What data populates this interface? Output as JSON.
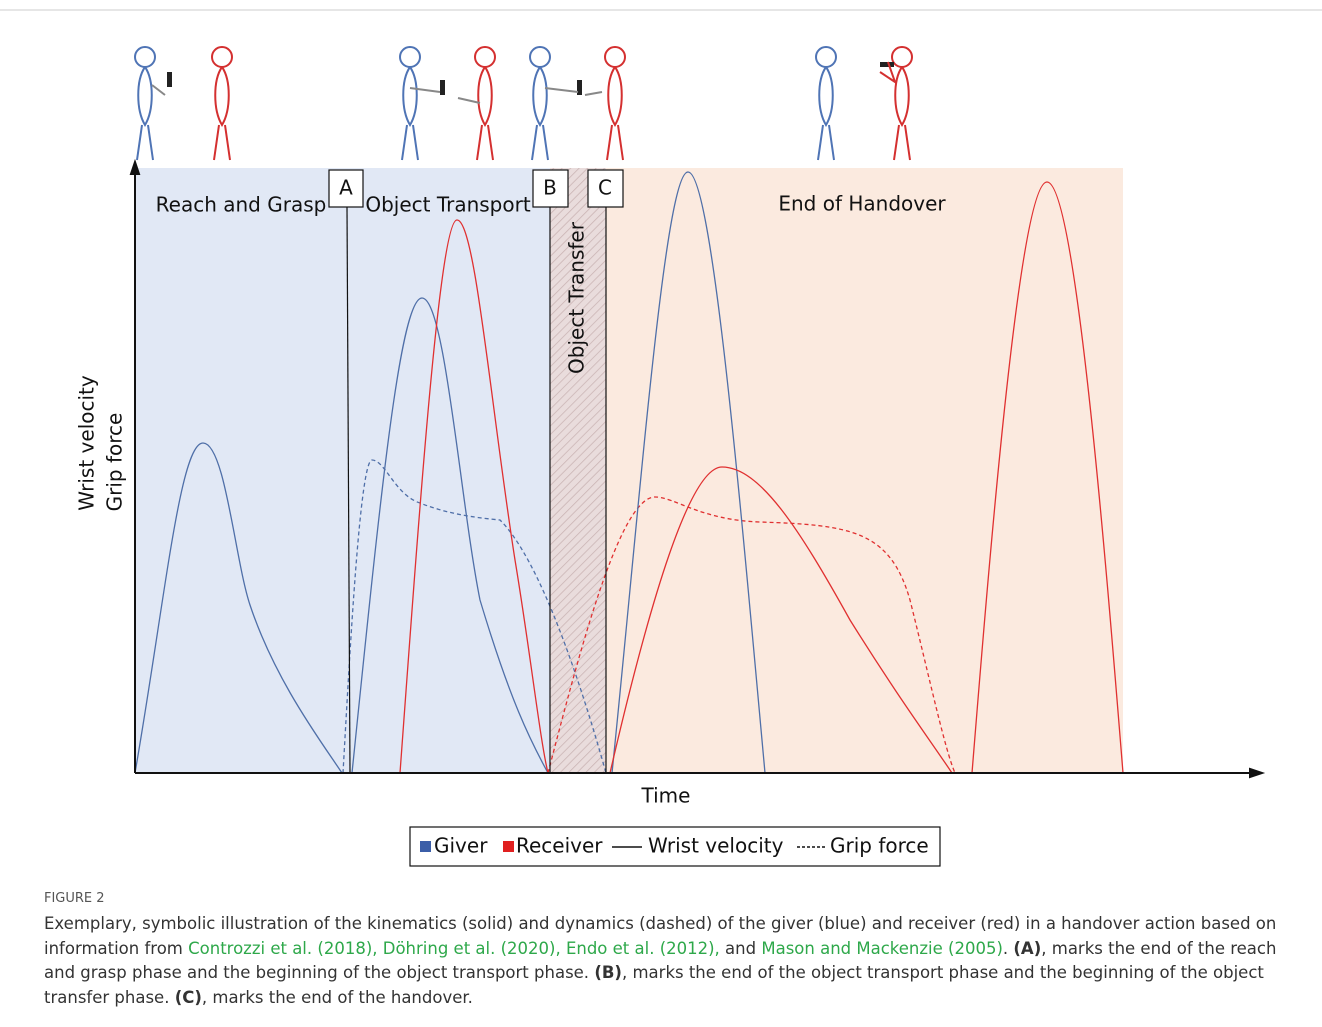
{
  "figure": {
    "phases": [
      "Reach and Grasp",
      "Object Transport",
      "Object Transfer",
      "End of Handover"
    ],
    "markers": [
      "A",
      "B",
      "C"
    ],
    "y_label": [
      "Wrist velocity",
      "Grip force"
    ],
    "x_label": "Time",
    "legend": [
      "Giver",
      "Receiver",
      "Wrist velocity",
      "Grip force"
    ]
  },
  "caption": {
    "label": "FIGURE 2",
    "segments": [
      "Exemplary, symbolic illustration of the kinematics (solid) and dynamics (dashed) of the giver (blue) and receiver (red) in a handover action based on information from ",
      "Controzzi et al. (2018), Döhring et al. (2020), Endo et al. (2012),",
      " and ",
      "Mason and Mackenzie (2005)",
      ". ",
      "(A)",
      ", marks the end of the reach and grasp phase and the beginning of the object transport phase. ",
      "(B)",
      ", marks the end of the object transport phase and the beginning of the object transfer phase. ",
      "(C)",
      ", marks the end of the handover."
    ]
  }
}
